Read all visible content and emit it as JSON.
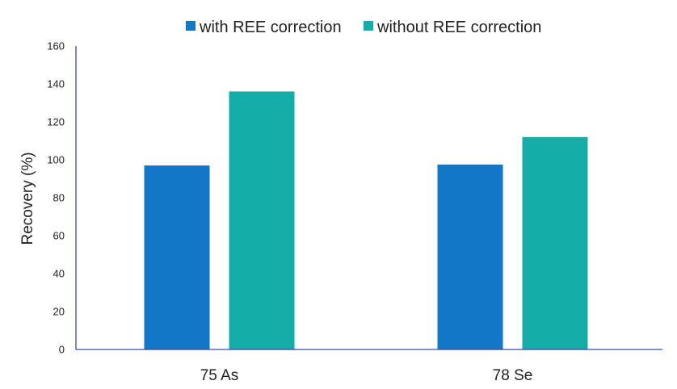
{
  "chart_data": {
    "type": "bar",
    "title": "",
    "xlabel": "",
    "ylabel": "Recovery (%)",
    "categories": [
      "75 As",
      "78 Se"
    ],
    "series": [
      {
        "name": "with REE correction",
        "color": "#1277c6",
        "values": [
          97,
          97.5
        ]
      },
      {
        "name": "without REE correction",
        "color": "#12aea7",
        "values": [
          136,
          112
        ]
      }
    ],
    "ylim": [
      0,
      160
    ],
    "yticks": [
      0,
      20,
      40,
      60,
      80,
      100,
      120,
      140,
      160
    ],
    "grid": false,
    "legend_position": "top-center",
    "axis_color": "#3b4a9c"
  }
}
